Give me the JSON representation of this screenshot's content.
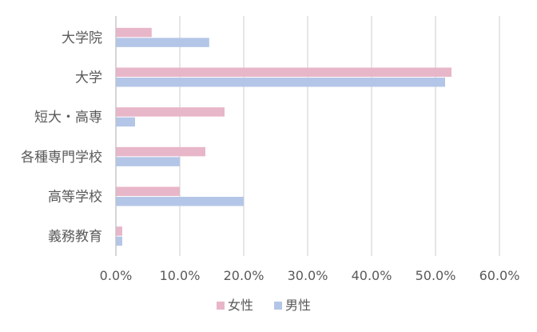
{
  "chart_data": {
    "type": "bar",
    "orientation": "horizontal",
    "categories": [
      "大学院",
      "大学",
      "短大・高専",
      "各種専門学校",
      "高等学校",
      "義務教育"
    ],
    "series": [
      {
        "name": "女性",
        "color": "#e8b6c9",
        "values": [
          5.6,
          52.5,
          17.0,
          14.0,
          10.0,
          1.0
        ]
      },
      {
        "name": "男性",
        "color": "#b4c6e7",
        "values": [
          14.6,
          51.5,
          3.0,
          10.0,
          20.0,
          1.0
        ]
      }
    ],
    "x_ticks": [
      "0.0%",
      "10.0%",
      "20.0%",
      "30.0%",
      "40.0%",
      "50.0%",
      "60.0%"
    ],
    "xlim": [
      0,
      60
    ],
    "value_unit": "%",
    "grid": "vertical",
    "legend_position": "bottom"
  }
}
